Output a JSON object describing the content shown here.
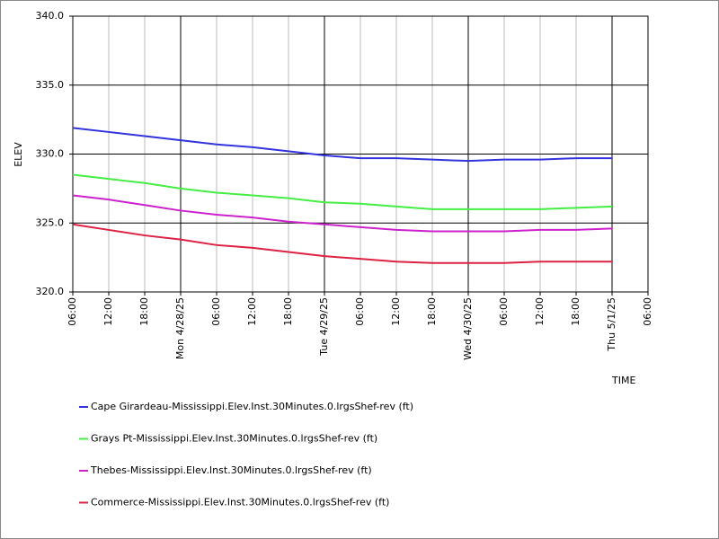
{
  "chart_data": {
    "type": "line",
    "y_label": "ELEV",
    "x_label": "TIME",
    "x": [
      "2025-04-27T06:00",
      "2025-04-27T12:00",
      "2025-04-27T18:00",
      "2025-04-28T00:00",
      "2025-04-28T06:00",
      "2025-04-28T12:00",
      "2025-04-28T18:00",
      "2025-04-29T00:00",
      "2025-04-29T06:00",
      "2025-04-29T12:00",
      "2025-04-29T18:00",
      "2025-04-30T00:00",
      "2025-04-30T06:00",
      "2025-04-30T12:00",
      "2025-04-30T18:00",
      "2025-05-01T00:00"
    ],
    "series": [
      {
        "name": "Cape Girardeau-Mississippi.Elev.Inst.30Minutes.0.lrgsShef-rev (ft)",
        "color": "#3333dd",
        "values": [
          331.9,
          331.6,
          331.3,
          331.0,
          330.7,
          330.5,
          330.2,
          329.9,
          329.7,
          329.7,
          329.6,
          329.5,
          329.6,
          329.6,
          329.7,
          329.7
        ]
      },
      {
        "name": "Grays Pt-Mississippi.Elev.Inst.30Minutes.0.lrgsShef-rev (ft)",
        "color": "#44ee44",
        "values": [
          328.5,
          328.2,
          327.9,
          327.5,
          327.2,
          327.0,
          326.8,
          326.5,
          326.4,
          326.2,
          326.0,
          326.0,
          326.0,
          326.0,
          326.1,
          326.2
        ]
      },
      {
        "name": "Thebes-Mississippi.Elev.Inst.30Minutes.0.lrgsShef-rev (ft)",
        "color": "#cc22cc",
        "values": [
          327.0,
          326.7,
          326.3,
          325.9,
          325.6,
          325.4,
          325.1,
          324.9,
          324.7,
          324.5,
          324.4,
          324.4,
          324.4,
          324.5,
          324.5,
          324.6
        ]
      },
      {
        "name": "Commerce-Mississippi.Elev.Inst.30Minutes.0.lrgsShef-rev (ft)",
        "color": "#dd2244",
        "values": [
          324.9,
          324.5,
          324.1,
          323.8,
          323.4,
          323.2,
          322.9,
          322.6,
          322.4,
          322.2,
          322.1,
          322.1,
          322.1,
          322.2,
          322.2,
          322.2
        ]
      }
    ],
    "xlim": [
      "2025-04-27T06:00",
      "2025-05-01T06:00"
    ],
    "xticks": [
      {
        "value": "2025-04-27T06:00",
        "label": "06:00"
      },
      {
        "value": "2025-04-27T12:00",
        "label": "12:00"
      },
      {
        "value": "2025-04-27T18:00",
        "label": "18:00"
      },
      {
        "value": "2025-04-28T00:00",
        "label": "Mon 4/28/25"
      },
      {
        "value": "2025-04-28T06:00",
        "label": "06:00"
      },
      {
        "value": "2025-04-28T12:00",
        "label": "12:00"
      },
      {
        "value": "2025-04-28T18:00",
        "label": "18:00"
      },
      {
        "value": "2025-04-29T00:00",
        "label": "Tue 4/29/25"
      },
      {
        "value": "2025-04-29T06:00",
        "label": "06:00"
      },
      {
        "value": "2025-04-29T12:00",
        "label": "12:00"
      },
      {
        "value": "2025-04-29T18:00",
        "label": "18:00"
      },
      {
        "value": "2025-04-30T00:00",
        "label": "Wed 4/30/25"
      },
      {
        "value": "2025-04-30T06:00",
        "label": "06:00"
      },
      {
        "value": "2025-04-30T12:00",
        "label": "12:00"
      },
      {
        "value": "2025-04-30T18:00",
        "label": "18:00"
      },
      {
        "value": "2025-05-01T00:00",
        "label": "Thu 5/1/25"
      },
      {
        "value": "2025-05-01T06:00",
        "label": "06:00"
      }
    ],
    "ylim": [
      320,
      340
    ],
    "yticks": [
      {
        "value": 320,
        "label": "320.0"
      },
      {
        "value": 325,
        "label": "325.0"
      },
      {
        "value": 330,
        "label": "330.0"
      },
      {
        "value": 335,
        "label": "335.0"
      },
      {
        "value": 340,
        "label": "340.0"
      }
    ],
    "grid": true
  }
}
